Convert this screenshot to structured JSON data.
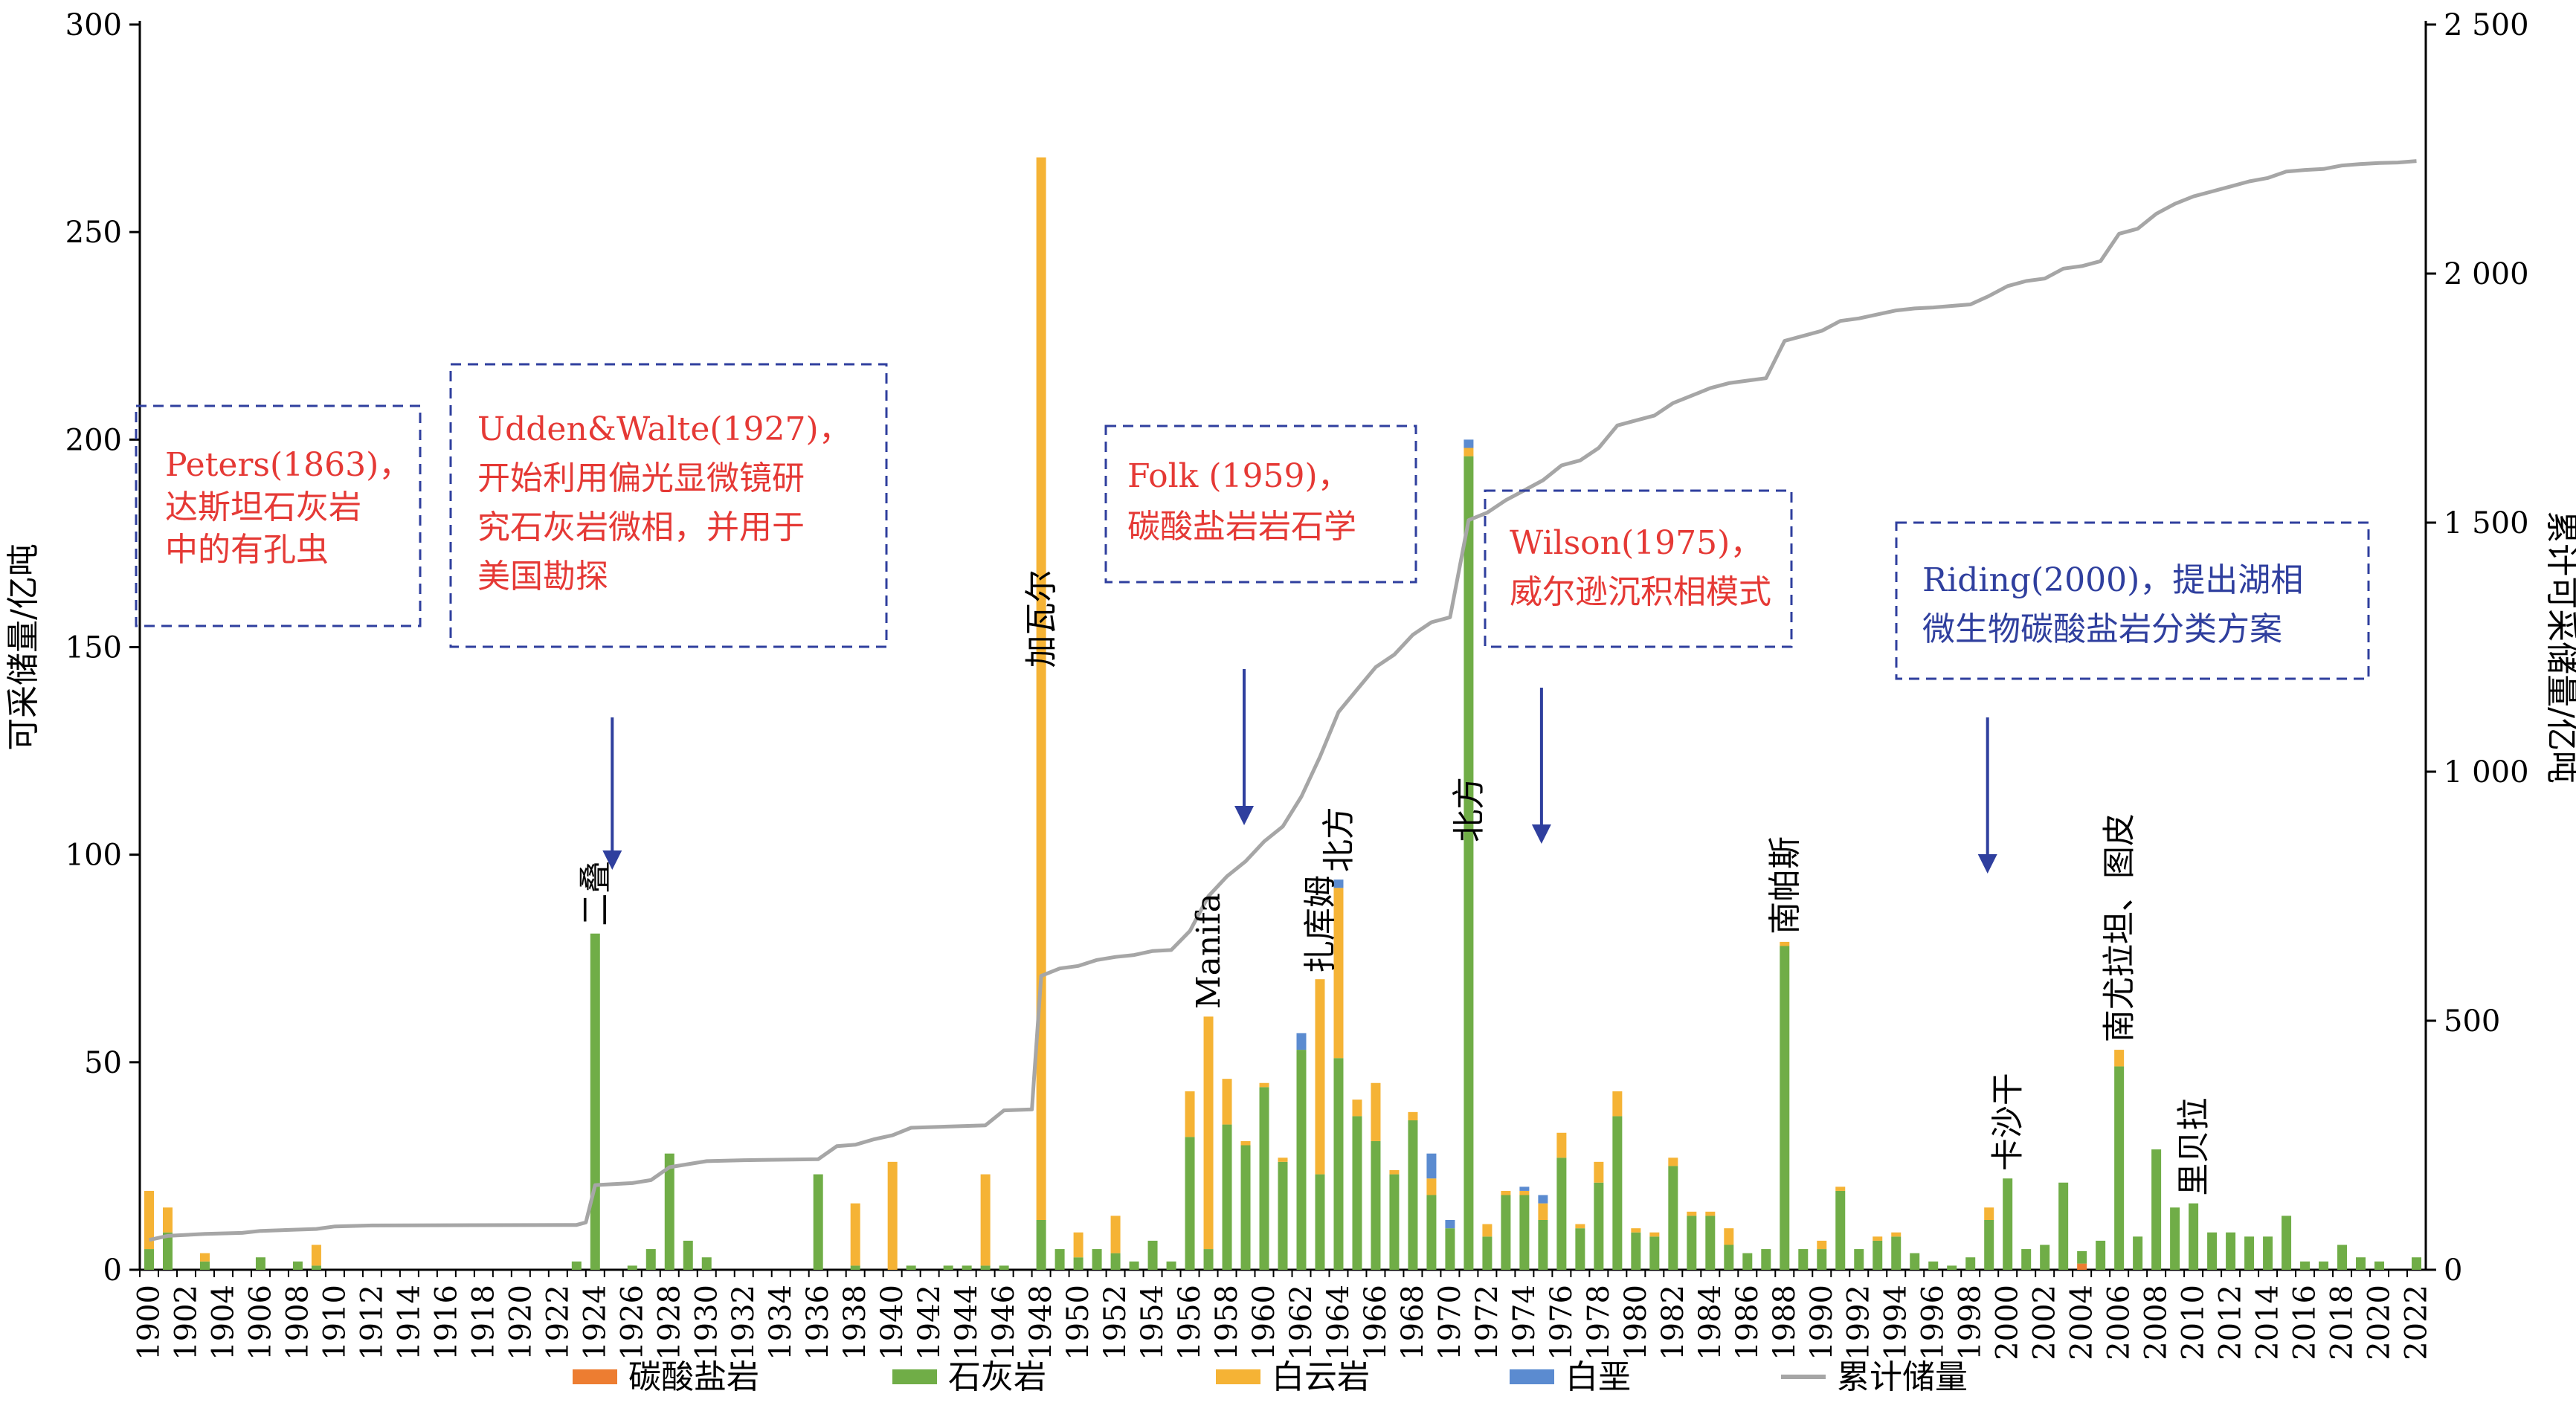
{
  "chart_data": {
    "type": "bar",
    "stacked": true,
    "xlabel": "",
    "ylabel_left": "可采储量/亿吨",
    "ylabel_right": "累计可采储量/亿吨",
    "ylim_left": [
      0,
      300
    ],
    "yticks_left": [
      0,
      50,
      100,
      150,
      200,
      250,
      300
    ],
    "ylim_right": [
      0,
      2500
    ],
    "yticks_right": [
      0,
      500,
      1000,
      1500,
      2000,
      2500
    ],
    "ytick_labels_right": [
      "0",
      "500",
      "1 000",
      "1 500",
      "2 000",
      "2 500"
    ],
    "x_range": [
      1900,
      2022
    ],
    "x_tick_labels": [
      1900,
      1902,
      1904,
      1906,
      1908,
      1910,
      1912,
      1914,
      1916,
      1918,
      1920,
      1922,
      1924,
      1926,
      1928,
      1930,
      1932,
      1934,
      1936,
      1938,
      1940,
      1942,
      1944,
      1946,
      1948,
      1950,
      1952,
      1954,
      1956,
      1958,
      1960,
      1962,
      1964,
      1966,
      1968,
      1970,
      1972,
      1974,
      1976,
      1978,
      1980,
      1982,
      1984,
      1986,
      1988,
      1990,
      1992,
      1994,
      1996,
      1998,
      2000,
      2002,
      2004,
      2006,
      2008,
      2010,
      2012,
      2014,
      2016,
      2018,
      2020,
      2022
    ],
    "legend_position": "bottom",
    "series": [
      {
        "name": "碳酸盐岩",
        "color": "#ed7d31",
        "values": {
          "2004": 1.5
        }
      },
      {
        "name": "石灰岩",
        "color": "#70ad47",
        "values": {
          "1900": 5,
          "1901": 9,
          "1903": 2,
          "1906": 3,
          "1908": 2,
          "1909": 1,
          "1923": 2,
          "1924": 81,
          "1926": 1,
          "1927": 5,
          "1928": 28,
          "1929": 7,
          "1930": 3,
          "1936": 23,
          "1938": 1,
          "1941": 1,
          "1943": 1,
          "1944": 1,
          "1945": 1,
          "1946": 1,
          "1948": 12,
          "1949": 5,
          "1950": 3,
          "1951": 5,
          "1952": 4,
          "1953": 2,
          "1954": 7,
          "1955": 2,
          "1956": 32,
          "1957": 5,
          "1958": 35,
          "1959": 30,
          "1960": 44,
          "1961": 26,
          "1962": 53,
          "1963": 23,
          "1964": 51,
          "1965": 37,
          "1966": 31,
          "1967": 23,
          "1968": 36,
          "1969": 18,
          "1970": 10,
          "1971": 196,
          "1972": 8,
          "1973": 18,
          "1974": 18,
          "1975": 12,
          "1976": 27,
          "1977": 10,
          "1978": 21,
          "1979": 37,
          "1980": 9,
          "1981": 8,
          "1982": 25,
          "1983": 13,
          "1984": 13,
          "1985": 6,
          "1986": 4,
          "1987": 5,
          "1988": 78,
          "1989": 5,
          "1990": 5,
          "1991": 19,
          "1992": 5,
          "1993": 7,
          "1994": 8,
          "1995": 4,
          "1996": 2,
          "1997": 1,
          "1998": 3,
          "1999": 12,
          "2000": 22,
          "2001": 5,
          "2002": 6,
          "2003": 21,
          "2004": 3,
          "2005": 7,
          "2006": 49,
          "2007": 8,
          "2008": 29,
          "2009": 15,
          "2010": 16,
          "2011": 9,
          "2012": 9,
          "2013": 8,
          "2014": 8,
          "2015": 13,
          "2016": 2,
          "2017": 2,
          "2018": 6,
          "2019": 3,
          "2020": 2,
          "2021": 0,
          "2022": 3
        }
      },
      {
        "name": "白云岩",
        "color": "#f5b335",
        "values": {
          "1900": 14,
          "1901": 6,
          "1903": 2,
          "1909": 5,
          "1938": 15,
          "1940": 26,
          "1945": 22,
          "1948": 256,
          "1950": 6,
          "1952": 9,
          "1956": 11,
          "1957": 56,
          "1958": 11,
          "1959": 1,
          "1960": 1,
          "1961": 1,
          "1963": 47,
          "1964": 41,
          "1965": 4,
          "1966": 14,
          "1967": 1,
          "1968": 2,
          "1969": 4,
          "1971": 2,
          "1972": 3,
          "1973": 1,
          "1974": 1,
          "1975": 4,
          "1976": 6,
          "1977": 1,
          "1978": 5,
          "1979": 6,
          "1980": 1,
          "1981": 1,
          "1982": 2,
          "1983": 1,
          "1984": 1,
          "1985": 4,
          "1988": 1,
          "1990": 2,
          "1991": 1,
          "1993": 1,
          "1994": 1,
          "1999": 3,
          "2006": 4
        }
      },
      {
        "name": "白垩",
        "color": "#5b8bd0",
        "values": {
          "1962": 4,
          "1964": 2,
          "1969": 6,
          "1970": 2,
          "1971": 2,
          "1974": 1,
          "1975": 2
        }
      },
      {
        "name": "累计储量",
        "color": "#a6a6a6",
        "type": "line",
        "axis": "right",
        "points": [
          [
            1900,
            60
          ],
          [
            1901,
            68
          ],
          [
            1903,
            72
          ],
          [
            1905,
            74
          ],
          [
            1906,
            78
          ],
          [
            1909,
            82
          ],
          [
            1910,
            87
          ],
          [
            1912,
            89
          ],
          [
            1923,
            90
          ],
          [
            1923.5,
            95
          ],
          [
            1924,
            170
          ],
          [
            1926,
            174
          ],
          [
            1927,
            180
          ],
          [
            1928,
            206
          ],
          [
            1930,
            218
          ],
          [
            1932,
            220
          ],
          [
            1936,
            222
          ],
          [
            1937,
            248
          ],
          [
            1938,
            251
          ],
          [
            1939,
            262
          ],
          [
            1940,
            270
          ],
          [
            1941,
            285
          ],
          [
            1945,
            290
          ],
          [
            1946,
            320
          ],
          [
            1947.5,
            322
          ],
          [
            1948,
            590
          ],
          [
            1949,
            605
          ],
          [
            1950,
            610
          ],
          [
            1951,
            622
          ],
          [
            1952,
            628
          ],
          [
            1953,
            632
          ],
          [
            1954,
            640
          ],
          [
            1955,
            642
          ],
          [
            1956,
            680
          ],
          [
            1957,
            750
          ],
          [
            1958,
            790
          ],
          [
            1959,
            820
          ],
          [
            1960,
            860
          ],
          [
            1961,
            890
          ],
          [
            1962,
            950
          ],
          [
            1963,
            1030
          ],
          [
            1964,
            1120
          ],
          [
            1965,
            1165
          ],
          [
            1966,
            1210
          ],
          [
            1967,
            1235
          ],
          [
            1968,
            1275
          ],
          [
            1969,
            1300
          ],
          [
            1970,
            1310
          ],
          [
            1971,
            1505
          ],
          [
            1972,
            1520
          ],
          [
            1973,
            1545
          ],
          [
            1974,
            1565
          ],
          [
            1975,
            1585
          ],
          [
            1976,
            1615
          ],
          [
            1977,
            1625
          ],
          [
            1978,
            1650
          ],
          [
            1979,
            1695
          ],
          [
            1980,
            1705
          ],
          [
            1981,
            1715
          ],
          [
            1982,
            1740
          ],
          [
            1983,
            1755
          ],
          [
            1984,
            1770
          ],
          [
            1985,
            1780
          ],
          [
            1986,
            1785
          ],
          [
            1987,
            1790
          ],
          [
            1988,
            1865
          ],
          [
            1989,
            1875
          ],
          [
            1990,
            1885
          ],
          [
            1991,
            1905
          ],
          [
            1992,
            1910
          ],
          [
            1993,
            1918
          ],
          [
            1994,
            1926
          ],
          [
            1995,
            1930
          ],
          [
            1996,
            1932
          ],
          [
            1997,
            1935
          ],
          [
            1998,
            1938
          ],
          [
            1999,
            1955
          ],
          [
            2000,
            1975
          ],
          [
            2001,
            1985
          ],
          [
            2002,
            1990
          ],
          [
            2003,
            2010
          ],
          [
            2004,
            2015
          ],
          [
            2005,
            2025
          ],
          [
            2006,
            2080
          ],
          [
            2007,
            2090
          ],
          [
            2008,
            2120
          ],
          [
            2009,
            2140
          ],
          [
            2010,
            2155
          ],
          [
            2011,
            2165
          ],
          [
            2012,
            2175
          ],
          [
            2013,
            2185
          ],
          [
            2014,
            2192
          ],
          [
            2015,
            2205
          ],
          [
            2016,
            2208
          ],
          [
            2017,
            2210
          ],
          [
            2018,
            2217
          ],
          [
            2019,
            2220
          ],
          [
            2020,
            2222
          ],
          [
            2021,
            2223
          ],
          [
            2022,
            2226
          ]
        ]
      }
    ],
    "field_labels": [
      {
        "text": "二叠",
        "year": 1924
      },
      {
        "text": "加瓦尔",
        "year": 1948
      },
      {
        "text": "Manifa",
        "year": 1957
      },
      {
        "text": "扎库姆",
        "year": 1963
      },
      {
        "text": "北方",
        "year": 1964
      },
      {
        "text": "北方",
        "year": 1971
      },
      {
        "text": "南帕斯",
        "year": 1988
      },
      {
        "text": "卡沙干",
        "year": 2000
      },
      {
        "text": "南尤拉坦、图皮",
        "year": 2006
      },
      {
        "text": "里贝拉",
        "year": 2010
      }
    ],
    "annotations": [
      {
        "lines": [
          "Peters(1863)，",
          "达斯坦石灰岩",
          "中的有孔虫"
        ],
        "color": "red"
      },
      {
        "lines": [
          "Udden&Walte(1927)，",
          "开始利用偏光显微镜研",
          "究石灰岩微相，并用于",
          "美国勘探"
        ],
        "color": "red",
        "arrow_year": 1925
      },
      {
        "lines": [
          "Folk (1959)，",
          "碳酸盐岩岩石学"
        ],
        "color": "red",
        "arrow_year": 1959
      },
      {
        "lines": [
          "Wilson(1975)，",
          "威尔逊沉积相模式"
        ],
        "color": "red",
        "arrow_year": 1975
      },
      {
        "lines": [
          "Riding(2000)，提出湖相",
          "微生物碳酸盐岩分类方案"
        ],
        "color": "blue",
        "arrow_year": 1999
      }
    ]
  }
}
